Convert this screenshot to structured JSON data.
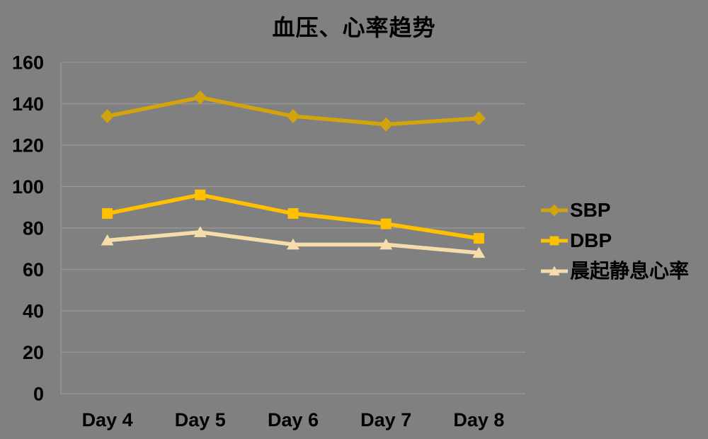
{
  "chart_data": {
    "type": "line",
    "title": "血压、心率趋势",
    "categories": [
      "Day 4",
      "Day 5",
      "Day 6",
      "Day 7",
      "Day 8"
    ],
    "series": [
      {
        "name": "SBP",
        "values": [
          134,
          143,
          134,
          130,
          133
        ],
        "color": "#D2A30B",
        "marker": "diamond"
      },
      {
        "name": "DBP",
        "values": [
          87,
          96,
          87,
          82,
          75
        ],
        "color": "#FFC000",
        "marker": "square"
      },
      {
        "name": "晨起静息心率",
        "values": [
          74,
          78,
          72,
          72,
          68
        ],
        "color": "#F5DCAA",
        "marker": "triangle"
      }
    ],
    "xlabel": "",
    "ylabel": "",
    "ylim": [
      0,
      160
    ],
    "yticks": [
      0,
      20,
      40,
      60,
      80,
      100,
      120,
      140,
      160
    ],
    "grid": true,
    "legend_position": "right",
    "colors": {
      "background": "#808080",
      "gridline": "#989898",
      "axis_line": "#989898",
      "text": "#000000"
    }
  }
}
